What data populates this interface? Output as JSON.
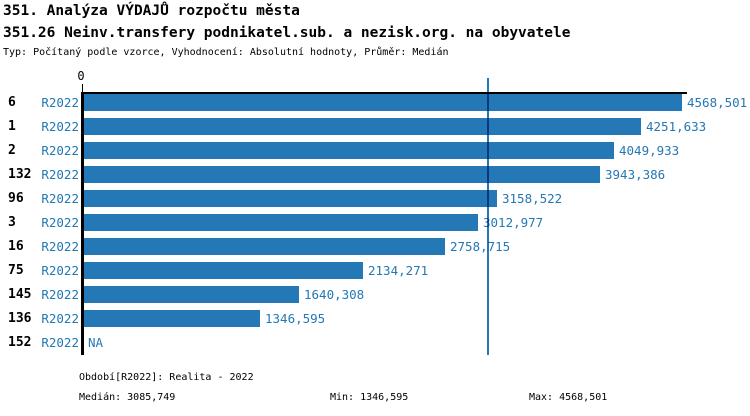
{
  "title_line1": "351. Analýza VÝDAJŮ rozpočtu města",
  "title_line2": "351.26 Neinv.transfery podnikatel.sub. a nezisk.org. na obyvatele",
  "subtitle": "Typ: Počítaný podle vzorce, Vyhodnocení: Absolutní hodnoty, Průměr: Medián",
  "chart_data": {
    "type": "bar",
    "orientation": "horizontal",
    "title": "351.26 Neinv.transfery podnikatel.sub. a nezisk.org. na obyvatele",
    "axis_origin_label": "0",
    "period_label": "R2022",
    "categories": [
      "6",
      "1",
      "2",
      "132",
      "96",
      "3",
      "16",
      "75",
      "145",
      "136",
      "152"
    ],
    "values": [
      4568.501,
      4251.633,
      4049.933,
      3943.386,
      3158.522,
      3012.977,
      2758.715,
      2134.271,
      1640.308,
      1346.595,
      null
    ],
    "value_labels": [
      "4568,501",
      "4251,633",
      "4049,933",
      "3943,386",
      "3158,522",
      "3012,977",
      "2758,715",
      "2134,271",
      "1640,308",
      "1346,595",
      "NA"
    ],
    "xlim": [
      0,
      4568.501
    ],
    "median_value": 3085.749,
    "min_value": 1346.595,
    "max_value": 4568.501,
    "grid": false,
    "legend_position": "none",
    "bar_color": "#2478b5",
    "median_line_color": "#2478b5",
    "label_color": "#2478b5",
    "axis_color": "#000000"
  },
  "footer": {
    "period_line": "Období[R2022]: Realita - 2022",
    "median_label": "Medián: 3085,749",
    "min_label": "Min: 1346,595",
    "max_label": "Max: 4568,501"
  }
}
